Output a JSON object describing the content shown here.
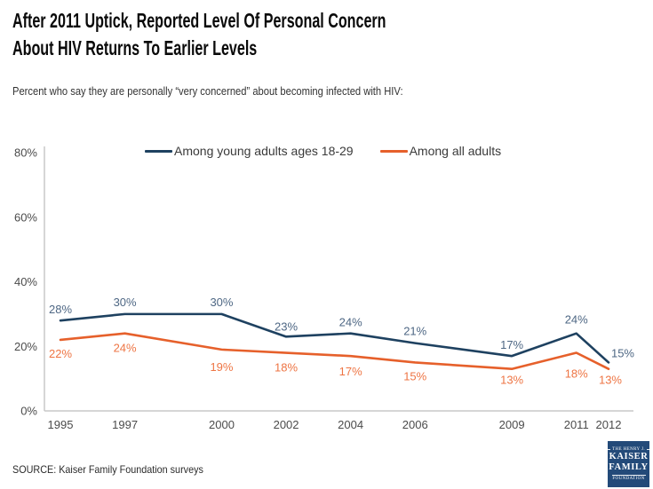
{
  "header": {
    "title_line1": "After 2011 Uptick, Reported Level Of Personal Concern",
    "title_line2": "About HIV Returns To Earlier Levels",
    "subtitle": "Percent who say they are personally “very concerned” about becoming infected with HIV:"
  },
  "chart_data": {
    "type": "line",
    "title": "After 2011 Uptick, Reported Level Of Personal Concern About HIV Returns To Earlier Levels",
    "x": [
      1995,
      1997,
      2000,
      2002,
      2004,
      2006,
      2009,
      2011,
      2012
    ],
    "series": [
      {
        "name": "Among young adults ages 18-29",
        "values": [
          28,
          30,
          30,
          23,
          24,
          21,
          17,
          24,
          15
        ],
        "color": "#1e4160",
        "label_color": "#4e6784"
      },
      {
        "name": "Among all adults",
        "values": [
          22,
          24,
          19,
          18,
          17,
          15,
          13,
          18,
          13
        ],
        "color": "#e6602b",
        "label_color": "#ee7544"
      }
    ],
    "ylim": [
      0,
      80
    ],
    "ytick_values": [
      0,
      20,
      40,
      60,
      80
    ],
    "yticks": [
      "0%",
      "20%",
      "40%",
      "60%",
      "80%"
    ],
    "xlabel": "",
    "ylabel": "",
    "grid": false,
    "legend_position": "top",
    "data_label_suffix": "%"
  },
  "footer": {
    "source": "SOURCE: Kaiser Family Foundation surveys",
    "logo": {
      "top": "THE HENRY J.",
      "line1": "KAISER",
      "line2": "FAMILY",
      "bottom": "FOUNDATION"
    }
  }
}
